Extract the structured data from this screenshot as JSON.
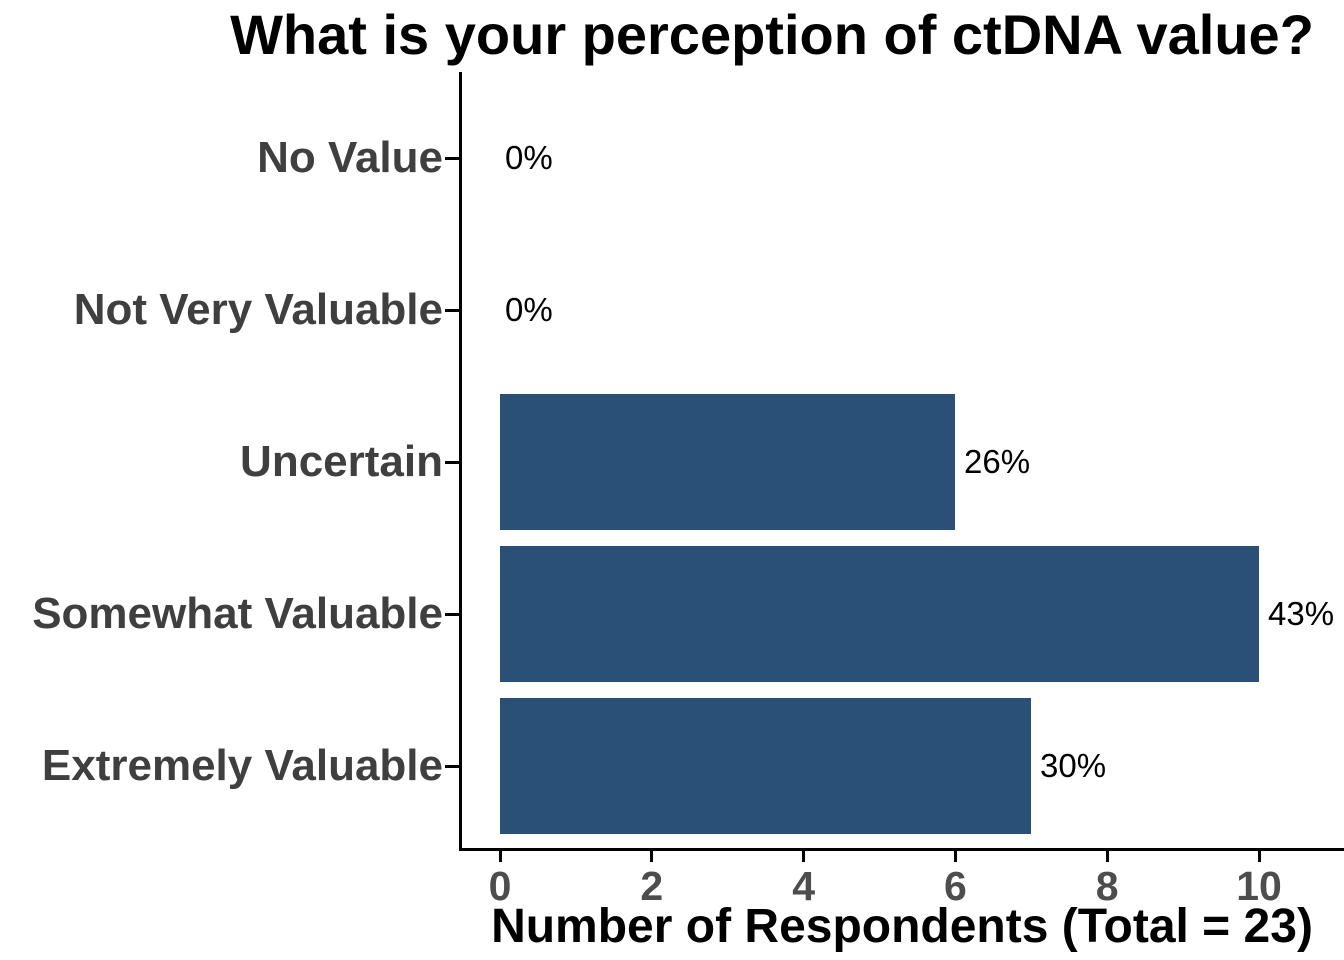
{
  "chart_data": {
    "type": "bar",
    "orientation": "horizontal",
    "title": "What is your perception of ctDNA value?",
    "xlabel": "Number of Respondents (Total = 23)",
    "ylabel": "",
    "categories": [
      "No Value",
      "Not Very Valuable",
      "Uncertain",
      "Somewhat Valuable",
      "Extremely Valuable"
    ],
    "values": [
      0,
      0,
      6,
      10,
      7
    ],
    "percent_labels": [
      "0%",
      "0%",
      "26%",
      "43%",
      "30%"
    ],
    "total_respondents": 23,
    "x_ticks": [
      "0",
      "2",
      "4",
      "6",
      "8",
      "10"
    ],
    "x_tick_values": [
      0,
      2,
      4,
      6,
      8,
      10
    ],
    "xlim": [
      0,
      11.1
    ],
    "grid": false,
    "legend": false
  },
  "colors": {
    "bar": "#2B5077",
    "axis_line": "#000000",
    "tick_label": "#4D4D4D",
    "category_label": "#3F3F3F",
    "title_text": "#000000",
    "value_label": "#000000",
    "background": "#FFFFFF"
  }
}
